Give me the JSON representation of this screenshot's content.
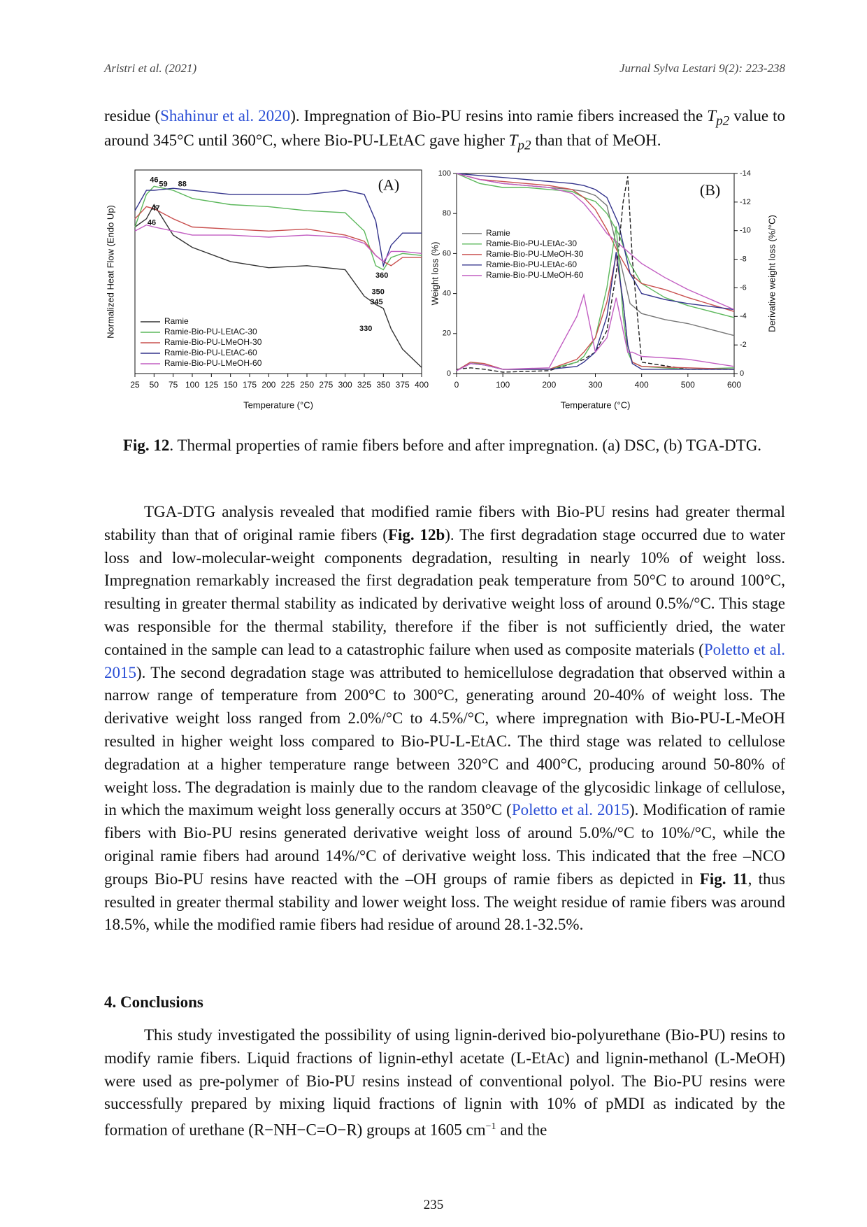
{
  "header": {
    "left": "Aristri et al. (2021)",
    "right": "Jurnal Sylva Lestari 9(2): 223-238"
  },
  "paragraph_1": [
    "residue (",
    "Shahinur et al. 2020",
    "). Impregnation of Bio-PU resins into ramie fibers increased the ",
    "T",
    "p2",
    " value to around 345°C until 360°C, where Bio-PU-LEtAC gave higher ",
    "T",
    "p2",
    " than that of MeOH."
  ],
  "caption": [
    "Fig. 12",
    ". Thermal properties of ramie fibers before and after impregnation. (a) DSC, (b) TGA-DTG."
  ],
  "paragraph_2": [
    "TGA-DTG analysis revealed that modified ramie fibers with Bio-PU resins had greater thermal stability than that of original ramie fibers (",
    "Fig. 12b",
    "). The first degradation stage occurred due to water loss and low-molecular-weight components degradation, resulting in nearly 10% of weight loss. Impregnation remarkably increased the first degradation peak temperature from 50°C to around 100°C, resulting in greater thermal stability as indicated by derivative weight loss of around 0.5%/°C. This stage was responsible for the thermal stability, therefore if the fiber is not sufficiently dried, the water contained in the sample can lead to a catastrophic failure when used as composite materials (",
    "Poletto et al. 2015",
    "). The second degradation stage was attributed to hemicellulose degradation that observed within a narrow range of temperature from 200°C to 300°C, generating around 20-40% of weight loss. The derivative weight loss ranged from 2.0%/°C to 4.5%/°C, where impregnation with Bio-PU-L-MeOH resulted in higher weight loss compared to Bio-PU-L-EtAC. The third stage was related to cellulose degradation at a higher temperature range between 320°C and 400°C, producing around 50-80% of weight loss. The degradation is mainly due to the random cleavage of the glycosidic linkage of cellulose, in which the maximum weight loss generally occurs at 350°C (",
    "Poletto et al. 2015",
    "). Modification of ramie fibers with Bio-PU resins generated derivative weight loss of around 5.0%/°C to 10%/°C, while the original ramie fibers had around 14%/°C of derivative weight loss. This indicated that the free –NCO groups Bio-PU resins have reacted with the –OH groups of ramie fibers as depicted in ",
    "Fig. 11",
    ", thus resulted in greater thermal stability and lower weight loss. The weight residue of ramie fibers was around 18.5%, while the modified ramie fibers had residue of around 28.1-32.5%."
  ],
  "section_heading": "4. Conclusions",
  "paragraph_3": [
    "This study investigated the possibility of using lignin-derived bio-polyurethane (Bio-PU) resins to modify ramie fibers. Liquid fractions of lignin-ethyl acetate (L-EtAc) and lignin-methanol (L-MeOH) were used as pre-polymer of Bio-PU resins instead of conventional polyol. The Bio-PU resins were successfully prepared by mixing liquid fractions of lignin with 10% of pMDI as indicated by the formation of urethane (R−NH−C=O−R) groups at 1605 cm",
    "−1",
    " and the"
  ],
  "page_number": "235",
  "chart_data": [
    {
      "type": "line",
      "panel_label": {
        "text": "(A)",
        "x": 357,
        "y": 9.2
      },
      "xlabel": "Temperature (°C)",
      "ylabel": "Normalized Heat Flow (Endo Up)",
      "xlim": [
        25,
        400
      ],
      "xticks": [
        25,
        50,
        75,
        100,
        125,
        150,
        175,
        200,
        225,
        250,
        275,
        300,
        325,
        350,
        375,
        400
      ],
      "ylim": [
        0,
        10
      ],
      "legend": "lower left",
      "series": [
        {
          "name": "Ramie",
          "color": "#333333",
          "x": [
            25,
            40,
            50,
            75,
            100,
            150,
            200,
            250,
            300,
            325,
            340,
            350,
            360,
            375,
            400
          ],
          "values": [
            7.2,
            7.6,
            8.3,
            6.8,
            6.2,
            5.5,
            5.2,
            5.3,
            5.1,
            3.8,
            3.4,
            3.2,
            2.2,
            1.2,
            0.3
          ]
        },
        {
          "name": "Ramie-Bio-PU-LEtAC-30",
          "color": "#5cb85c",
          "x": [
            25,
            40,
            50,
            75,
            100,
            150,
            200,
            250,
            300,
            325,
            340,
            350,
            360,
            375,
            400
          ],
          "values": [
            7.2,
            8.8,
            9.2,
            9.0,
            8.6,
            8.3,
            8.2,
            8.0,
            7.9,
            7.0,
            5.3,
            5.1,
            5.7,
            5.9,
            5.8
          ]
        },
        {
          "name": "Ramie-Bio-PU-LMeOH-30",
          "color": "#c9504f",
          "x": [
            25,
            40,
            50,
            75,
            100,
            150,
            200,
            250,
            300,
            325,
            340,
            350,
            360,
            375,
            400
          ],
          "values": [
            7.6,
            8.2,
            8.1,
            7.6,
            7.2,
            7.1,
            7.0,
            7.1,
            6.8,
            6.5,
            5.8,
            5.5,
            5.3,
            5.7,
            5.7
          ]
        },
        {
          "name": "Ramie-Bio-PU-LEtAC-60",
          "color": "#34348c",
          "x": [
            25,
            40,
            50,
            75,
            100,
            150,
            200,
            250,
            300,
            325,
            340,
            350,
            360,
            375,
            400
          ],
          "values": [
            8.0,
            9.0,
            9.0,
            9.1,
            9.0,
            8.8,
            8.8,
            8.8,
            9.0,
            8.8,
            7.5,
            5.3,
            6.3,
            6.9,
            6.9
          ]
        },
        {
          "name": "Ramie-Bio-PU-LMeOH-60",
          "color": "#c25ec2",
          "x": [
            25,
            40,
            50,
            75,
            100,
            150,
            200,
            250,
            300,
            325,
            340,
            350,
            360,
            375,
            400
          ],
          "values": [
            7.0,
            7.3,
            7.2,
            7.0,
            6.8,
            6.8,
            6.7,
            6.8,
            6.7,
            6.4,
            5.8,
            5.5,
            6.0,
            6.0,
            5.9
          ]
        }
      ],
      "annotations": [
        {
          "text": "46",
          "x": 50,
          "y": 9.5
        },
        {
          "text": "59",
          "x": 62,
          "y": 9.3
        },
        {
          "text": "88",
          "x": 87,
          "y": 9.3
        },
        {
          "text": "47",
          "x": 52,
          "y": 8.1
        },
        {
          "text": "46",
          "x": 47,
          "y": 7.4
        },
        {
          "text": "360",
          "x": 348,
          "y": 4.8
        },
        {
          "text": "350",
          "x": 343,
          "y": 4.0
        },
        {
          "text": "345",
          "x": 341,
          "y": 3.5
        },
        {
          "text": "330",
          "x": 327,
          "y": 2.2
        }
      ]
    },
    {
      "type": "line",
      "panel_label": {
        "text": "(B)",
        "x": 548,
        "y": 91
      },
      "xlabel": "Temperature (°C)",
      "ylabel": "Weight loss (%)",
      "y2label": "Derivative weight loss (%/°C)",
      "xlim": [
        0,
        600
      ],
      "xticks": [
        0,
        100,
        200,
        300,
        400,
        500,
        600
      ],
      "ylim": [
        0,
        100
      ],
      "yticks": [
        0,
        20,
        40,
        60,
        80,
        100
      ],
      "y2lim": [
        0,
        -14
      ],
      "y2ticks": [
        0,
        -2,
        -4,
        -6,
        -8,
        -10,
        -12,
        -14
      ],
      "legend": "center left",
      "series": [
        {
          "name": "Ramie",
          "color": "#777777",
          "x": [
            0,
            50,
            100,
            150,
            200,
            250,
            275,
            300,
            325,
            350,
            375,
            400,
            450,
            500,
            600
          ],
          "values": [
            100,
            97,
            95,
            94,
            93,
            92,
            91,
            89,
            84,
            60,
            35,
            30,
            27,
            25,
            19
          ]
        },
        {
          "name": "Ramie-Bio-PU-LEtAc-30",
          "color": "#5cb85c",
          "x": [
            0,
            50,
            100,
            150,
            200,
            250,
            275,
            300,
            325,
            350,
            375,
            400,
            450,
            500,
            600
          ],
          "values": [
            100,
            95,
            93,
            93,
            92,
            91,
            88,
            86,
            80,
            70,
            55,
            45,
            38,
            34,
            28
          ]
        },
        {
          "name": "Ramie-Bio-PU-LMeOH-30",
          "color": "#c9504f",
          "x": [
            0,
            50,
            100,
            150,
            200,
            250,
            275,
            300,
            325,
            350,
            375,
            400,
            450,
            500,
            600
          ],
          "values": [
            100,
            97,
            96,
            95,
            94,
            92,
            88,
            82,
            72,
            60,
            50,
            45,
            42,
            38,
            31
          ]
        },
        {
          "name": "Ramie-Bio-PU-LEtAc-60",
          "color": "#34348c",
          "x": [
            0,
            50,
            100,
            150,
            200,
            250,
            275,
            300,
            325,
            350,
            375,
            400,
            450,
            500,
            600
          ],
          "values": [
            100,
            99,
            98,
            97,
            96,
            95,
            94,
            92,
            88,
            75,
            50,
            40,
            37,
            35,
            32
          ]
        },
        {
          "name": "Ramie-Bio-PU-LMeOH-60",
          "color": "#c25ec2",
          "x": [
            0,
            50,
            100,
            150,
            200,
            250,
            275,
            300,
            325,
            350,
            375,
            400,
            450,
            500,
            600
          ],
          "values": [
            100,
            97,
            95,
            94,
            93,
            90,
            85,
            78,
            70,
            65,
            60,
            55,
            48,
            42,
            32
          ]
        },
        {
          "axis": "y2",
          "color": "#222222",
          "dashed": true,
          "x": [
            0,
            30,
            60,
            100,
            200,
            260,
            275,
            300,
            325,
            345,
            360,
            370,
            380,
            400,
            500,
            600
          ],
          "values": [
            -0.3,
            -0.4,
            -0.3,
            -0.1,
            -0.2,
            -0.8,
            -1.0,
            -1.5,
            -3,
            -7,
            -12,
            -13.8,
            -8,
            -0.8,
            -0.3,
            -0.3
          ]
        },
        {
          "axis": "y2",
          "color": "#5cb85c",
          "x": [
            0,
            30,
            60,
            100,
            200,
            260,
            275,
            300,
            325,
            345,
            360,
            370,
            380,
            400,
            500,
            600
          ],
          "values": [
            -0.2,
            -0.8,
            -0.6,
            -0.3,
            -0.3,
            -0.8,
            -1.2,
            -2.5,
            -6,
            -10.3,
            -4,
            -1.5,
            -0.8,
            -0.5,
            -0.3,
            -0.4
          ]
        },
        {
          "axis": "y2",
          "color": "#c9504f",
          "x": [
            0,
            30,
            60,
            100,
            200,
            260,
            275,
            300,
            325,
            345,
            360,
            370,
            380,
            400,
            500,
            600
          ],
          "values": [
            -0.2,
            -0.8,
            -0.7,
            -0.3,
            -0.3,
            -1,
            -1.5,
            -2.5,
            -5,
            -8.3,
            -5,
            -2,
            -0.8,
            -0.5,
            -0.4,
            -0.3
          ]
        },
        {
          "axis": "y2",
          "color": "#34348c",
          "x": [
            0,
            30,
            60,
            100,
            200,
            260,
            275,
            300,
            325,
            345,
            360,
            370,
            380,
            400,
            500,
            600
          ],
          "values": [
            -0.2,
            -0.7,
            -0.6,
            -0.3,
            -0.3,
            -0.5,
            -0.8,
            -1.5,
            -4,
            -8.5,
            -5,
            -2,
            -0.7,
            -0.3,
            -0.3,
            -0.3
          ]
        },
        {
          "axis": "y2",
          "color": "#c25ec2",
          "x": [
            0,
            30,
            60,
            100,
            200,
            260,
            275,
            300,
            325,
            345,
            360,
            370,
            380,
            400,
            500,
            600
          ],
          "values": [
            -0.2,
            -0.7,
            -0.6,
            -0.3,
            -0.4,
            -4,
            -5.5,
            -1.5,
            -2.5,
            -5.3,
            -3,
            -1.5,
            -1.5,
            -1.2,
            -1,
            -0.5
          ]
        }
      ]
    }
  ]
}
